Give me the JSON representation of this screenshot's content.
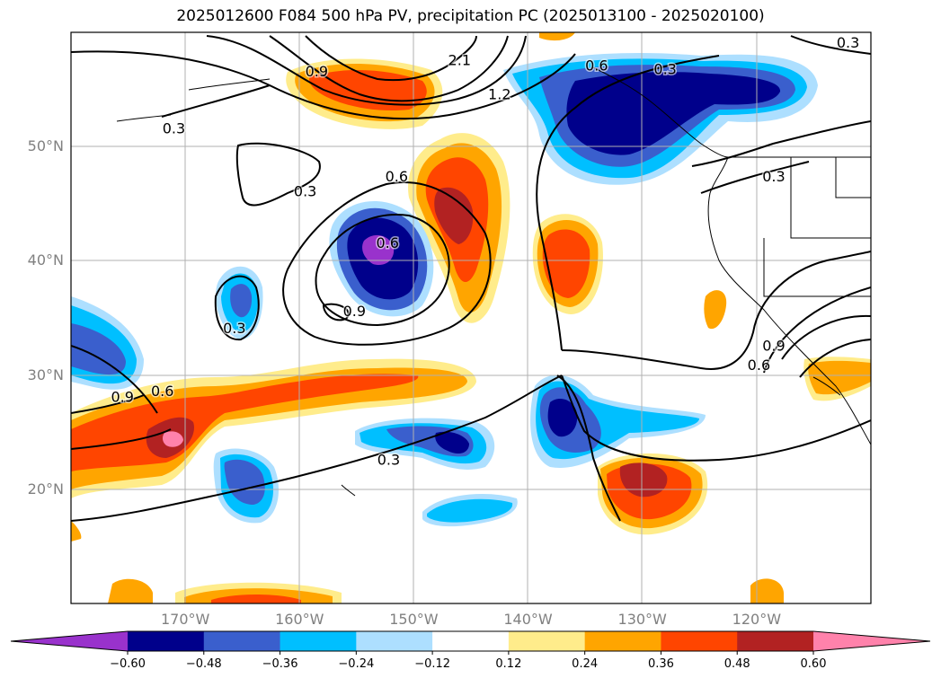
{
  "title": "2025012600 F084 500 hPa PV, precipitation PC (2025013100 - 2025020100)",
  "chart_data": {
    "type": "heatmap",
    "map_extent": {
      "lon": [
        -180,
        -110
      ],
      "lat": [
        10,
        60
      ]
    },
    "y_ticks": [
      {
        "lat": 20,
        "label": "20°N"
      },
      {
        "lat": 30,
        "label": "30°N"
      },
      {
        "lat": 40,
        "label": "40°N"
      },
      {
        "lat": 50,
        "label": "50°N"
      }
    ],
    "x_ticks": [
      {
        "lon": -170,
        "label": "170°W"
      },
      {
        "lon": -160,
        "label": "160°W"
      },
      {
        "lon": -150,
        "label": "150°W"
      },
      {
        "lon": -140,
        "label": "140°W"
      },
      {
        "lon": -130,
        "label": "130°W"
      },
      {
        "lon": -120,
        "label": "120°W"
      }
    ],
    "grid": true,
    "colorbar": {
      "levels": [
        -0.6,
        -0.48,
        -0.36,
        -0.24,
        -0.12,
        0.12,
        0.24,
        0.36,
        0.48,
        0.6
      ],
      "tick_labels": [
        "−0.60",
        "−0.48",
        "−0.36",
        "−0.24",
        "−0.12",
        "0.12",
        "0.24",
        "0.36",
        "0.48",
        "0.60"
      ],
      "colors": [
        "#9932CC",
        "#00008B",
        "#3A5FCD",
        "#00BFFF",
        "#ADDFFF",
        "#FFFFFF",
        "#FFEC8B",
        "#FFA500",
        "#FF4500",
        "#B22222",
        "#FF82AB"
      ],
      "extend": "both"
    },
    "contour_labels": [
      {
        "text": "0.3",
        "lon": -171,
        "lat": 51.5
      },
      {
        "text": "0.3",
        "lon": -159.5,
        "lat": 46
      },
      {
        "text": "0.6",
        "lon": -151.5,
        "lat": 47.3
      },
      {
        "text": "0.9",
        "lon": -158.5,
        "lat": 56.5
      },
      {
        "text": "2.1",
        "lon": -146,
        "lat": 57.5
      },
      {
        "text": "1.2",
        "lon": -142.5,
        "lat": 54.5
      },
      {
        "text": "0.6",
        "lon": -134,
        "lat": 57
      },
      {
        "text": "0.3",
        "lon": -128,
        "lat": 56.7
      },
      {
        "text": "0.3",
        "lon": -112,
        "lat": 59
      },
      {
        "text": "0.3",
        "lon": -118.5,
        "lat": 47.3
      },
      {
        "text": "0.6",
        "lon": -152.3,
        "lat": 41.5
      },
      {
        "text": "0.9",
        "lon": -155.2,
        "lat": 35.5
      },
      {
        "text": "0.3",
        "lon": -165.7,
        "lat": 34
      },
      {
        "text": "0.9",
        "lon": -175.5,
        "lat": 28
      },
      {
        "text": "0.6",
        "lon": -172,
        "lat": 28.5
      },
      {
        "text": "0.3",
        "lon": -152.2,
        "lat": 22.5
      },
      {
        "text": "0.6",
        "lon": -119.8,
        "lat": 30.8
      },
      {
        "text": "0.9",
        "lon": -118.5,
        "lat": 32.5
      }
    ]
  }
}
